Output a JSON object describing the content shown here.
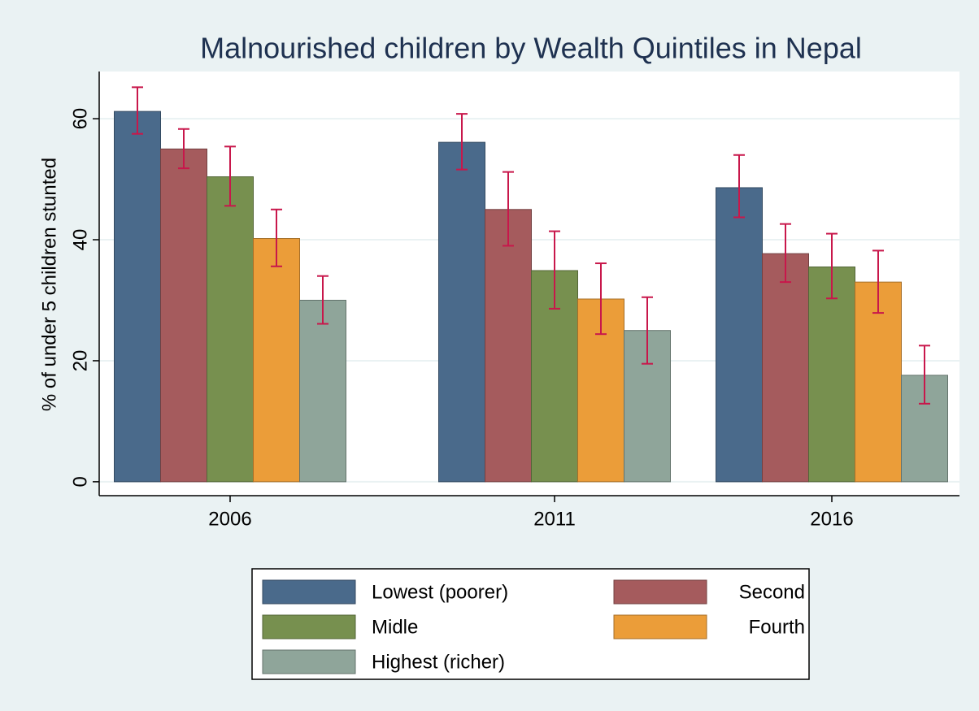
{
  "chart_data": {
    "type": "bar",
    "title": "Malnourished children by Wealth Quintiles in Nepal",
    "y_label": "% of under 5 children stunted",
    "categories": [
      "2006",
      "2011",
      "2016"
    ],
    "series": [
      {
        "name": "Lowest (poorer)",
        "color": "#4a6a8b",
        "values": [
          61.2,
          56.1,
          48.6
        ],
        "ci_low": [
          57.5,
          51.6,
          43.7
        ],
        "ci_high": [
          65.2,
          60.8,
          54.0
        ]
      },
      {
        "name": "Second",
        "color": "#a55b5d",
        "values": [
          55.0,
          45.0,
          37.7
        ],
        "ci_low": [
          51.8,
          39.0,
          33.0
        ],
        "ci_high": [
          58.3,
          51.2,
          42.6
        ]
      },
      {
        "name": "Midle",
        "color": "#77904f",
        "values": [
          50.4,
          34.9,
          35.5
        ],
        "ci_low": [
          45.6,
          28.6,
          30.3
        ],
        "ci_high": [
          55.4,
          41.4,
          41.0
        ]
      },
      {
        "name": "Fourth",
        "color": "#eb9d39",
        "values": [
          40.2,
          30.2,
          33.0
        ],
        "ci_low": [
          35.6,
          24.4,
          27.9
        ],
        "ci_high": [
          45.0,
          36.1,
          38.2
        ]
      },
      {
        "name": "Highest (richer)",
        "color": "#8fa59a",
        "values": [
          30.0,
          25.0,
          17.6
        ],
        "ci_low": [
          26.1,
          19.5,
          12.9
        ],
        "ci_high": [
          34.0,
          30.5,
          22.5
        ]
      }
    ],
    "error_color": "#c8174b",
    "ylim": [
      -2.3,
      67.8
    ],
    "yticks": [
      0,
      20,
      40,
      60
    ],
    "grid": true,
    "legend": "bottom"
  }
}
